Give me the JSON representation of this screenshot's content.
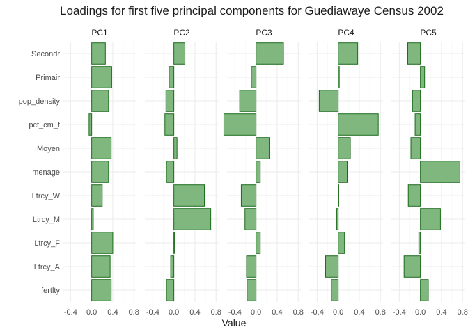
{
  "chart_data": {
    "type": "bar",
    "orientation": "horizontal",
    "title": "Loadings for first five principal components  for Guediawaye Census 2002",
    "xlabel": "Value",
    "ylabel": "",
    "xlim": [
      -0.55,
      0.85
    ],
    "xticks": [
      "-0.4",
      "0.0",
      "0.4",
      "0.8"
    ],
    "xtick_values": [
      -0.4,
      0.0,
      0.4,
      0.8
    ],
    "grid": true,
    "bar_color": "#7fb77e",
    "bar_edge_color": "#1b6b1b",
    "categories": [
      "Secondr",
      "Primair",
      "pop_density",
      "pct_cm_f",
      "Moyen",
      "menage",
      "Ltrcy_W",
      "Ltrcy_M",
      "Ltrcy_F",
      "Ltrcy_A",
      "fertlty"
    ],
    "series": [
      {
        "name": "PC1",
        "values": [
          0.26,
          0.38,
          0.32,
          -0.05,
          0.37,
          0.32,
          0.2,
          0.03,
          0.4,
          0.35,
          0.37
        ]
      },
      {
        "name": "PC2",
        "values": [
          0.21,
          -0.09,
          -0.15,
          -0.17,
          0.06,
          -0.14,
          0.58,
          0.7,
          0.01,
          -0.06,
          -0.14
        ]
      },
      {
        "name": "PC3",
        "values": [
          0.52,
          -0.09,
          -0.31,
          -0.61,
          0.25,
          0.08,
          -0.28,
          -0.21,
          0.08,
          -0.18,
          -0.17
        ]
      },
      {
        "name": "PC4",
        "values": [
          0.37,
          0.02,
          -0.36,
          0.76,
          0.23,
          0.17,
          0.0,
          -0.03,
          0.12,
          -0.24,
          -0.13
        ]
      },
      {
        "name": "PC5",
        "values": [
          -0.24,
          0.08,
          -0.15,
          -0.1,
          -0.18,
          0.75,
          -0.23,
          0.38,
          -0.03,
          -0.31,
          0.15
        ]
      }
    ]
  }
}
